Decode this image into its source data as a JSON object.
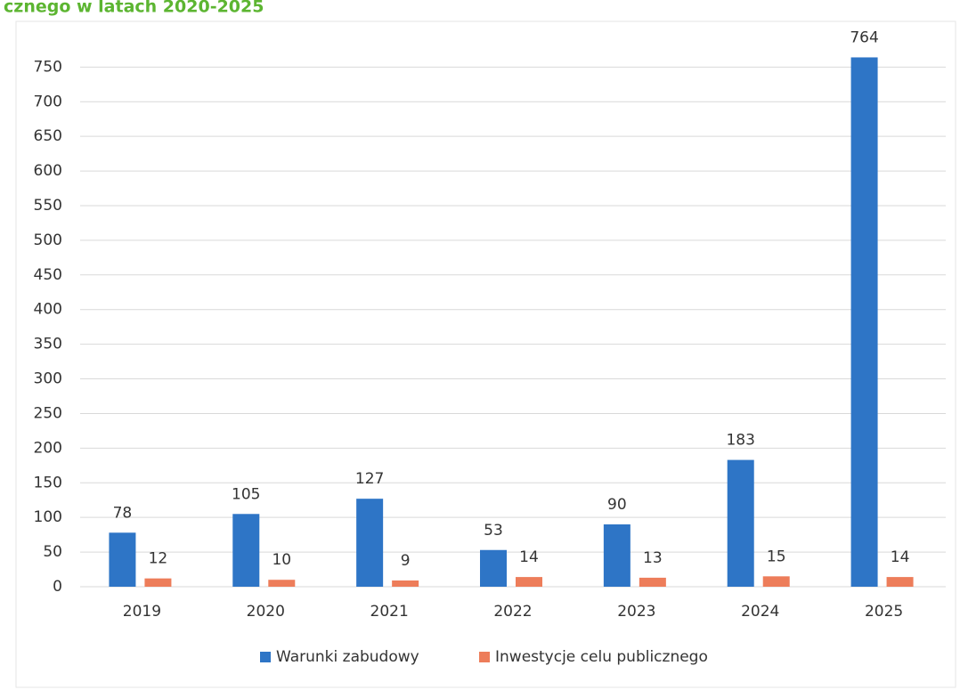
{
  "chart_data": {
    "type": "bar",
    "title": "cznego w latach 2020-2025",
    "categories": [
      "2019",
      "2020",
      "2021",
      "2022",
      "2023",
      "2024",
      "2025"
    ],
    "series": [
      {
        "name": "Warunki zabudowy",
        "color": "#2e75c6",
        "values": [
          78,
          105,
          127,
          53,
          90,
          183,
          764
        ]
      },
      {
        "name": "Inwestycje celu publicznego",
        "color": "#ed7d5a",
        "values": [
          12,
          10,
          9,
          14,
          13,
          15,
          14
        ]
      }
    ],
    "ylim": [
      0,
      780
    ],
    "yticks": [
      0,
      50,
      100,
      150,
      200,
      250,
      300,
      350,
      400,
      450,
      500,
      550,
      600,
      650,
      700,
      750
    ],
    "grid": true,
    "legend": "bottom"
  }
}
